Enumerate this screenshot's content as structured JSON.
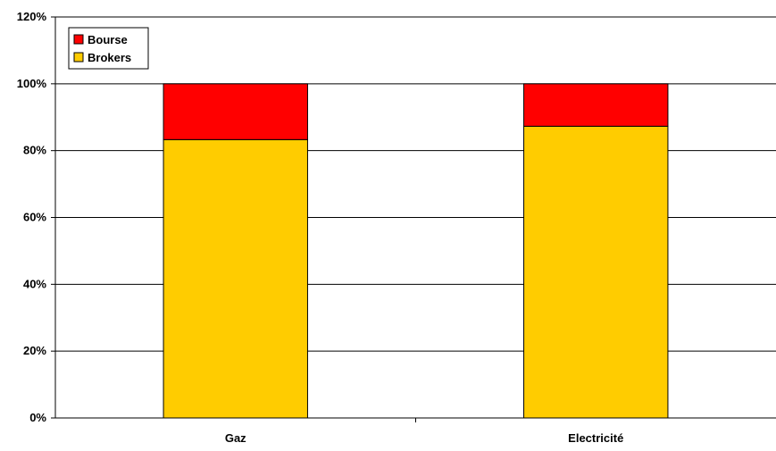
{
  "chart_data": {
    "type": "bar",
    "stacked": true,
    "categories": [
      "Gaz",
      "Electricité"
    ],
    "series": [
      {
        "name": "Brokers",
        "values": [
          83.3,
          87.3
        ],
        "color": "#FFCC00"
      },
      {
        "name": "Bourse",
        "values": [
          16.7,
          12.7
        ],
        "color": "#FF0000"
      }
    ],
    "yticks": [
      "0%",
      "20%",
      "40%",
      "60%",
      "80%",
      "100%",
      "120%"
    ],
    "ylim": [
      0,
      120
    ],
    "grid": true,
    "legend_position": "top-left",
    "legend": [
      "Bourse",
      "Brokers"
    ]
  }
}
